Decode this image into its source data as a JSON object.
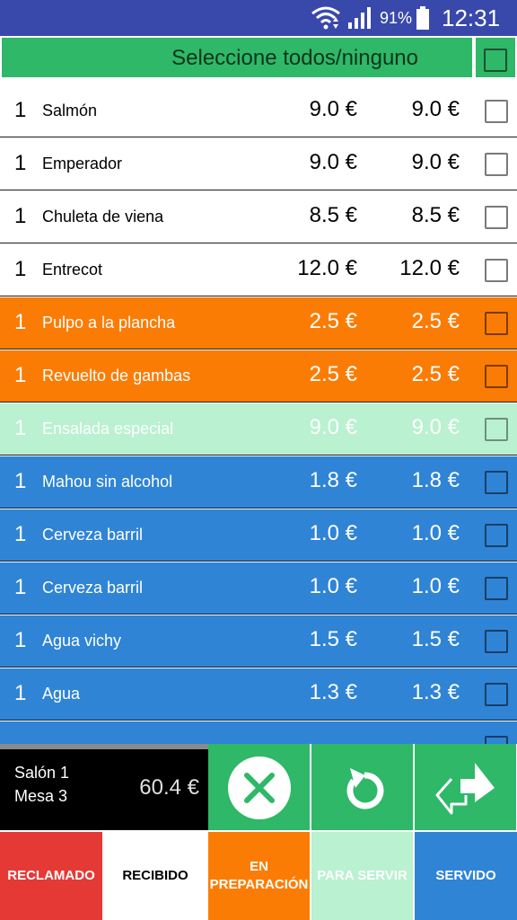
{
  "status_bar": {
    "battery": "91%",
    "time": "12:31",
    "icons": [
      "wifi-icon",
      "signal-icon",
      "battery-icon"
    ]
  },
  "select_all": {
    "label": "Seleccione todos/ninguno",
    "checked": false
  },
  "items": [
    {
      "qty": "1",
      "name": "Salmón",
      "price": "9.0 €",
      "total": "9.0 €",
      "state": "white",
      "checked": false
    },
    {
      "qty": "1",
      "name": "Emperador",
      "price": "9.0 €",
      "total": "9.0 €",
      "state": "white",
      "checked": false
    },
    {
      "qty": "1",
      "name": "Chuleta de viena",
      "price": "8.5 €",
      "total": "8.5 €",
      "state": "white",
      "checked": false
    },
    {
      "qty": "1",
      "name": "Entrecot",
      "price": "12.0 €",
      "total": "12.0 €",
      "state": "white",
      "checked": false
    },
    {
      "qty": "1",
      "name": "Pulpo a la plancha",
      "price": "2.5 €",
      "total": "2.5 €",
      "state": "orange",
      "checked": false
    },
    {
      "qty": "1",
      "name": "Revuelto de gambas",
      "price": "2.5 €",
      "total": "2.5 €",
      "state": "orange",
      "checked": false
    },
    {
      "qty": "1",
      "name": "Ensalada especial",
      "price": "9.0 €",
      "total": "9.0 €",
      "state": "mint",
      "checked": false
    },
    {
      "qty": "1",
      "name": "Mahou sin alcohol",
      "price": "1.8 €",
      "total": "1.8 €",
      "state": "blue",
      "checked": false
    },
    {
      "qty": "1",
      "name": "Cerveza barril",
      "price": "1.0 €",
      "total": "1.0 €",
      "state": "blue",
      "checked": false
    },
    {
      "qty": "1",
      "name": "Cerveza barril",
      "price": "1.0 €",
      "total": "1.0 €",
      "state": "blue",
      "checked": false
    },
    {
      "qty": "1",
      "name": "Agua vichy",
      "price": "1.5 €",
      "total": "1.5 €",
      "state": "blue",
      "checked": false
    },
    {
      "qty": "1",
      "name": "Agua",
      "price": "1.3 €",
      "total": "1.3 €",
      "state": "blue",
      "checked": false
    },
    {
      "qty": "",
      "name": "",
      "price": "",
      "total": "",
      "state": "blue",
      "checked": false
    }
  ],
  "summary": {
    "salon": "Salón 1",
    "mesa": "Mesa 3",
    "amount": "60.4 €"
  },
  "actions": {
    "cancel_icon": "close-circle-icon",
    "undo_icon": "undo-icon",
    "transfer_icon": "transfer-arrows-icon"
  },
  "status_buttons": {
    "reclamado": "RECLAMADO",
    "recibido": "RECIBIDO",
    "en_preparacion": "EN\nPREPARACIÓN",
    "para_servir": "PARA SERVIR",
    "servido": "SERVIDO"
  },
  "colors": {
    "status_bar": "#3949ab",
    "green": "#2eb867",
    "orange": "#fb7c05",
    "mint": "#b9f1d1",
    "blue": "#2f84d6",
    "red": "#e53935"
  }
}
